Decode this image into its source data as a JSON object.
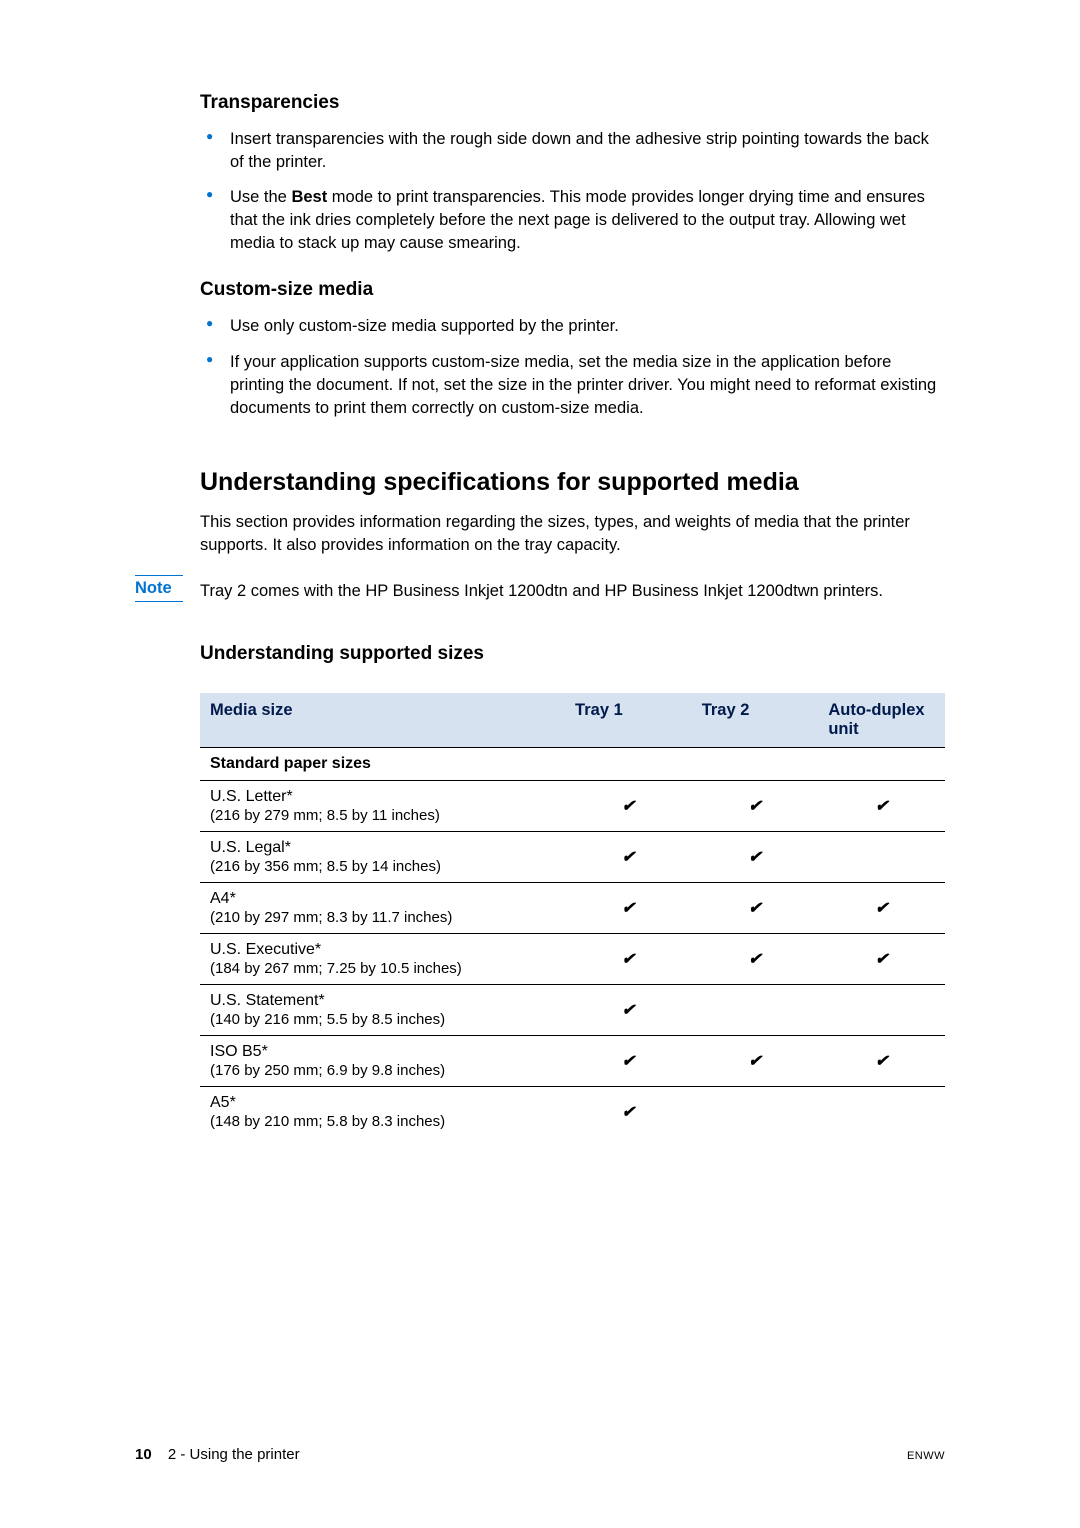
{
  "sections": {
    "transparencies": {
      "heading": "Transparencies",
      "bullets": [
        "Insert transparencies with the rough side down and the adhesive strip pointing towards the back of the printer.",
        ""
      ],
      "bullet2_pre": "Use the ",
      "bullet2_bold": "Best",
      "bullet2_post": " mode to print transparencies. This mode provides longer drying time and ensures that the ink dries completely before the next page is delivered to the output tray. Allowing wet media to stack up may cause smearing."
    },
    "custom": {
      "heading": "Custom-size media",
      "bullets": [
        "Use only custom-size media supported by the printer.",
        "If your application supports custom-size media, set the media size in the application before printing the document. If not, set the size in the printer driver. You might need to reformat existing documents to print them correctly on custom-size media."
      ]
    },
    "specs": {
      "heading": "Understanding specifications for supported media",
      "intro": "This section provides information regarding the sizes, types, and weights of media that the printer supports. It also provides information on the tray capacity.",
      "note_label": "Note",
      "note_text": "Tray 2 comes with the HP Business Inkjet 1200dtn and HP Business Inkjet 1200dtwn printers."
    },
    "sizes": {
      "heading": "Understanding supported sizes"
    }
  },
  "table": {
    "columns": [
      "Media size",
      "Tray 1",
      "Tray 2",
      "Auto-duplex unit"
    ],
    "section_row": "Standard paper sizes",
    "rows": [
      {
        "name": "U.S. Letter*",
        "dim": "(216 by 279 mm; 8.5 by 11 inches)",
        "tray1": true,
        "tray2": true,
        "duplex": true
      },
      {
        "name": "U.S. Legal*",
        "dim": "(216 by 356 mm; 8.5 by 14 inches)",
        "tray1": true,
        "tray2": true,
        "duplex": false
      },
      {
        "name": "A4*",
        "dim": "(210 by 297 mm; 8.3 by 11.7 inches)",
        "tray1": true,
        "tray2": true,
        "duplex": true
      },
      {
        "name": "U.S. Executive*",
        "dim": "(184 by 267 mm; 7.25 by 10.5 inches)",
        "tray1": true,
        "tray2": true,
        "duplex": true
      },
      {
        "name": "U.S. Statement*",
        "dim": "(140 by 216 mm; 5.5 by 8.5 inches)",
        "tray1": true,
        "tray2": false,
        "duplex": false
      },
      {
        "name": "ISO B5*",
        "dim": "(176 by 250 mm; 6.9 by 9.8 inches)",
        "tray1": true,
        "tray2": true,
        "duplex": true
      },
      {
        "name": "A5*",
        "dim": "(148 by 210 mm; 5.8 by 8.3 inches)",
        "tray1": true,
        "tray2": false,
        "duplex": false
      }
    ],
    "check_glyph": "✔"
  },
  "footer": {
    "page_num": "10",
    "chapter": "2 - Using the printer",
    "right": "ENWW"
  },
  "colors": {
    "accent": "#0073cf",
    "table_header_bg": "#d6e2ef",
    "table_header_fg": "#001a4d"
  }
}
